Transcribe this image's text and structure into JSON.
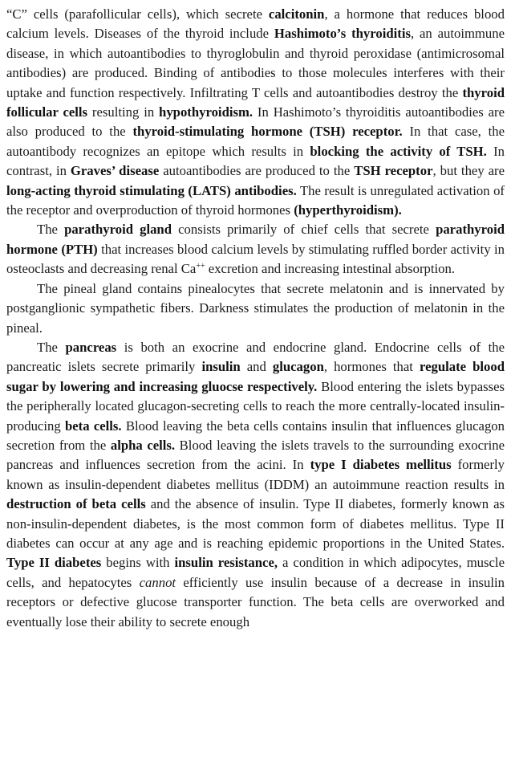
{
  "paragraphs": [
    {
      "indent": false,
      "segments": [
        {
          "t": "“C” cells (parafollicular cells), which secrete "
        },
        {
          "t": "calcitonin",
          "b": true
        },
        {
          "t": ", a hormone that reduces blood calcium levels. Diseases of the thyroid include "
        },
        {
          "t": "Hashimoto’s thyroiditis",
          "b": true
        },
        {
          "t": ", an autoimmune disease, in which autoantibodies to thyroglobulin and thyroid peroxidase (antimicrosomal antibodies) are produced. Binding of antibodies to those molecules interferes with their uptake and function respectively. Infiltrating T cells and autoantibodies destroy the "
        },
        {
          "t": "thyroid follicular cells",
          "b": true
        },
        {
          "t": " resulting in "
        },
        {
          "t": "hypothyroidism.",
          "b": true
        },
        {
          "t": " In Hashimoto’s thyroiditis autoantibodies are also produced to the "
        },
        {
          "t": "thyroid-stimulating hormone (TSH) receptor.",
          "b": true
        },
        {
          "t": " In that case, the autoantibody recognizes an epitope which results in "
        },
        {
          "t": "blocking the activity of TSH.",
          "b": true
        },
        {
          "t": " In contrast, in "
        },
        {
          "t": "Graves’ disease",
          "b": true
        },
        {
          "t": " autoantibodies are produced to the "
        },
        {
          "t": "TSH receptor",
          "b": true
        },
        {
          "t": ", but they are "
        },
        {
          "t": "long-acting thyroid stimulating (LATS) antibodies.",
          "b": true
        },
        {
          "t": " The result is unregulated activation of the receptor and overproduction of thyroid hormones "
        },
        {
          "t": "(hyperthyroidism).",
          "b": true
        }
      ]
    },
    {
      "indent": true,
      "segments": [
        {
          "t": "The "
        },
        {
          "t": "parathyroid gland",
          "b": true
        },
        {
          "t": " consists primarily of chief cells that secrete "
        },
        {
          "t": "parathyroid hormone (PTH)",
          "b": true
        },
        {
          "t": " that increases blood calcium levels by stimulating ruffled border activity in osteoclasts and decreasing renal Ca"
        },
        {
          "t": "++",
          "sup": true
        },
        {
          "t": " excretion and increasing intestinal absorption."
        }
      ]
    },
    {
      "indent": true,
      "segments": [
        {
          "t": "The pineal gland contains pinealocytes that secrete melatonin and is innervated by postganglionic sympathetic fibers. Darkness stimulates the production of melatonin in the pineal."
        }
      ]
    },
    {
      "indent": true,
      "segments": [
        {
          "t": "The "
        },
        {
          "t": "pancreas",
          "b": true
        },
        {
          "t": " is both an exocrine and endocrine gland. Endocrine cells of the pancreatic islets secrete primarily "
        },
        {
          "t": "insulin",
          "b": true
        },
        {
          "t": " and "
        },
        {
          "t": "glucagon",
          "b": true
        },
        {
          "t": ", hormones that "
        },
        {
          "t": "regulate blood sugar by lowering and increasing gluocse respectively.",
          "b": true
        },
        {
          "t": " Blood entering the islets bypasses the peripherally located glucagon-secreting cells to reach the more centrally-located insulin-producing "
        },
        {
          "t": "beta cells.",
          "b": true
        },
        {
          "t": " Blood leaving the beta cells contains insulin that influences glucagon secretion from the "
        },
        {
          "t": "alpha cells.",
          "b": true
        },
        {
          "t": " Blood leaving the islets travels to the surrounding exocrine pancreas and influences secretion from the acini. In "
        },
        {
          "t": "type I diabetes mellitus",
          "b": true
        },
        {
          "t": " formerly known as insulin-dependent diabetes mellitus (IDDM) an autoimmune reaction results in "
        },
        {
          "t": "destruction of beta cells",
          "b": true
        },
        {
          "t": " and the absence of insulin. Type II diabetes, formerly known as non-insulin-dependent diabetes, is the most common form of diabetes mellitus. Type II diabetes can occur at any age and is reaching epidemic proportions in the United States. "
        },
        {
          "t": "Type II diabetes",
          "b": true
        },
        {
          "t": " begins with "
        },
        {
          "t": "insulin resistance,",
          "b": true
        },
        {
          "t": " a condition in which adipocytes, muscle cells, and hepatocytes "
        },
        {
          "t": "cannot",
          "i": true
        },
        {
          "t": " efficiently use insulin because of a decrease in insulin receptors or defective glucose transporter function. The beta cells are overworked and eventually lose their ability to secrete enough"
        }
      ]
    }
  ]
}
